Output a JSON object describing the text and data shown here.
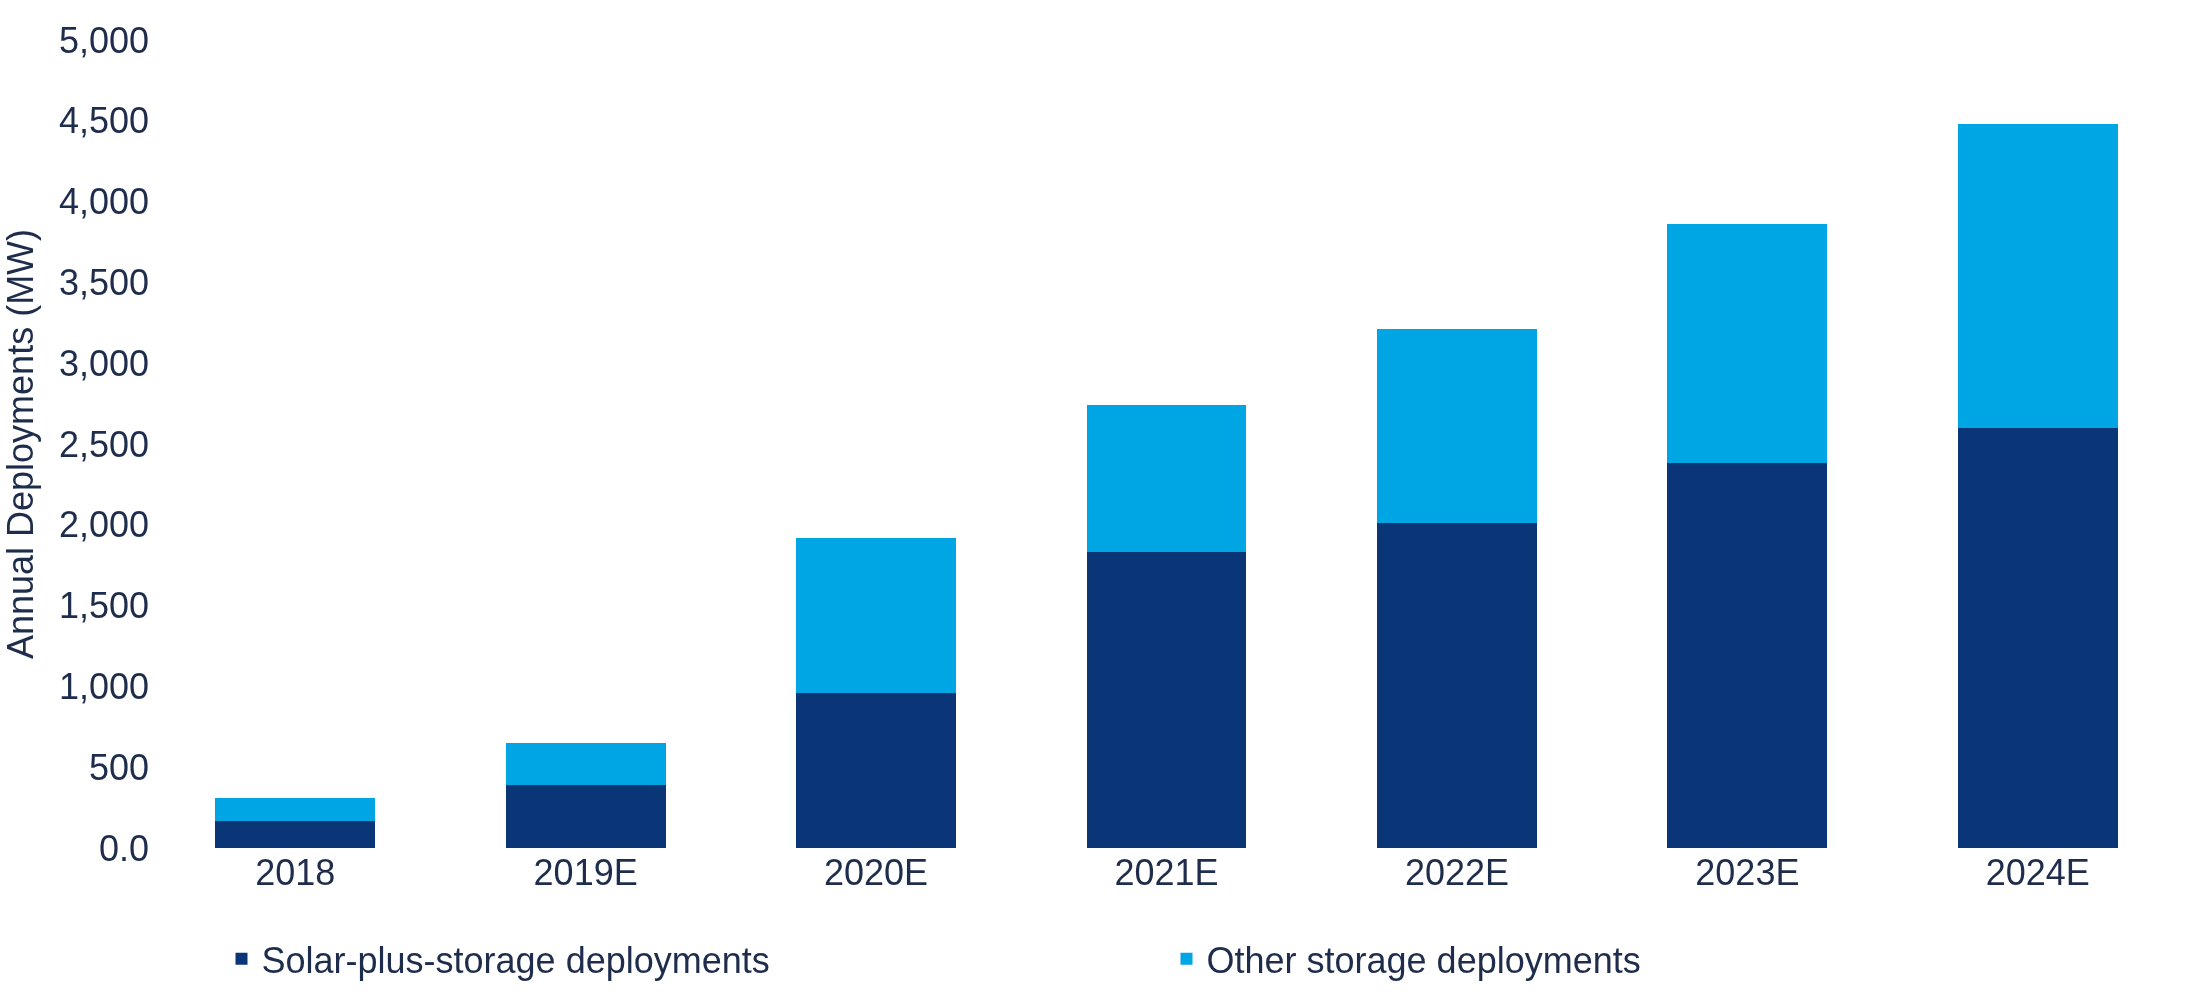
{
  "chart_data": {
    "type": "bar",
    "stacked": true,
    "ylabel": "Annual Deployments (MW)",
    "categories": [
      "2018",
      "2019E",
      "2020E",
      "2021E",
      "2022E",
      "2023E",
      "2024E"
    ],
    "series": [
      {
        "name": "Solar-plus-storage deployments",
        "color": "#0a3678",
        "values": [
          170,
          390,
          960,
          1830,
          2010,
          2380,
          2600
        ]
      },
      {
        "name": "Other storage deployments",
        "color": "#00a5e3",
        "values": [
          140,
          260,
          960,
          910,
          1200,
          1480,
          1880
        ]
      }
    ],
    "ylim": [
      0,
      5000
    ],
    "yticks": [
      {
        "value": 0,
        "label": "0.0"
      },
      {
        "value": 500,
        "label": "500"
      },
      {
        "value": 1000,
        "label": "1,000"
      },
      {
        "value": 1500,
        "label": "1,500"
      },
      {
        "value": 2000,
        "label": "2,000"
      },
      {
        "value": 2500,
        "label": "2,500"
      },
      {
        "value": 3000,
        "label": "3,000"
      },
      {
        "value": 3500,
        "label": "3,500"
      },
      {
        "value": 4000,
        "label": "4,000"
      },
      {
        "value": 4500,
        "label": "4,500"
      },
      {
        "value": 5000,
        "label": "5,000"
      }
    ],
    "legend": "bottom"
  }
}
